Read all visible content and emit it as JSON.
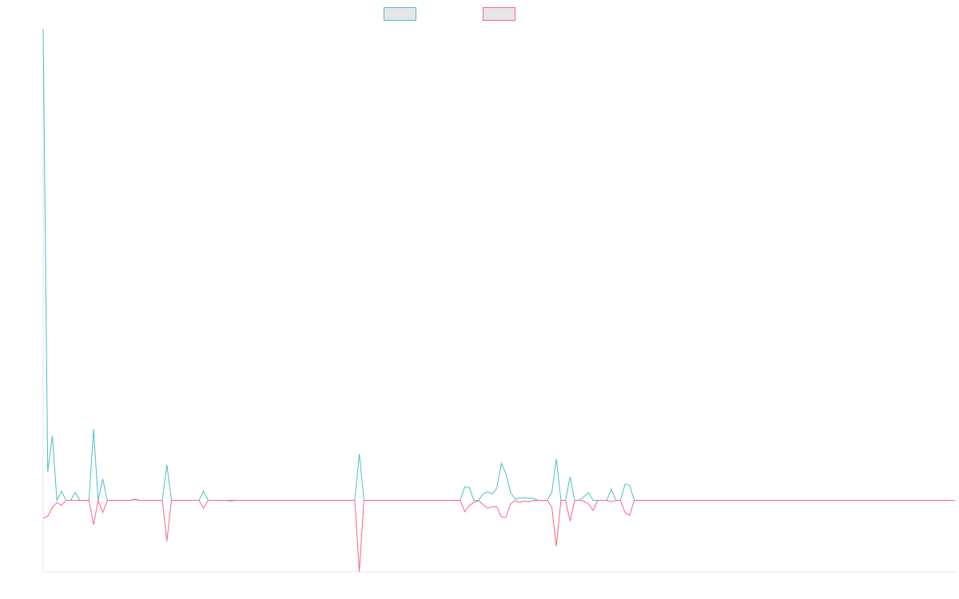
{
  "colors": {
    "series_a": "#4bc0c0",
    "series_b": "#ff6384",
    "legend_fill": "#e6e6e6",
    "axis": "#e5e5e5"
  },
  "chart_data": {
    "type": "line",
    "title": "",
    "xlabel": "",
    "ylabel": "",
    "grid": false,
    "legend_placement": "top",
    "x_count": 200,
    "ylim": [
      -10,
      66
    ],
    "series": [
      {
        "color": "#4bc0c0",
        "points": [
          [
            0,
            66
          ],
          [
            1,
            4
          ],
          [
            2,
            9
          ],
          [
            3,
            0
          ],
          [
            4,
            1.3
          ],
          [
            5,
            0
          ],
          [
            6,
            0
          ],
          [
            7,
            1.1
          ],
          [
            8,
            0
          ],
          [
            9,
            0
          ],
          [
            10,
            0
          ],
          [
            11,
            10
          ],
          [
            12,
            0
          ],
          [
            13,
            3
          ],
          [
            14,
            0
          ],
          [
            19,
            0
          ],
          [
            20,
            0.2
          ],
          [
            21,
            0
          ],
          [
            26,
            0
          ],
          [
            27,
            5
          ],
          [
            28,
            0
          ],
          [
            34,
            0
          ],
          [
            35,
            1.3
          ],
          [
            36,
            0
          ],
          [
            40,
            0
          ],
          [
            41,
            -0.1
          ],
          [
            42,
            0
          ],
          [
            68,
            0
          ],
          [
            69,
            6.5
          ],
          [
            70,
            0
          ],
          [
            91,
            0
          ],
          [
            92,
            1.9
          ],
          [
            93,
            1.8
          ],
          [
            94,
            0
          ],
          [
            95,
            0
          ],
          [
            96,
            0.9
          ],
          [
            97,
            1.2
          ],
          [
            98,
            0.9
          ],
          [
            99,
            1.7
          ],
          [
            100,
            5.2
          ],
          [
            101,
            3.7
          ],
          [
            102,
            1.1
          ],
          [
            103,
            0.2
          ],
          [
            104,
            0.3
          ],
          [
            105,
            0.4
          ],
          [
            106,
            0.3
          ],
          [
            107,
            0.3
          ],
          [
            108,
            0
          ],
          [
            110,
            0
          ],
          [
            111,
            1.1
          ],
          [
            112,
            5.8
          ],
          [
            113,
            0
          ],
          [
            114,
            0
          ],
          [
            115,
            3.3
          ],
          [
            116,
            0
          ],
          [
            117,
            0
          ],
          [
            118,
            0.5
          ],
          [
            119,
            1.1
          ],
          [
            120,
            0
          ],
          [
            122,
            0
          ],
          [
            123,
            0
          ],
          [
            124,
            1.6
          ],
          [
            125,
            0
          ],
          [
            126,
            0
          ],
          [
            127,
            2.3
          ],
          [
            128,
            2.1
          ],
          [
            129,
            0
          ],
          [
            199,
            0
          ]
        ]
      },
      {
        "color": "#ff6384",
        "points": [
          [
            0,
            -2.5
          ],
          [
            1,
            -2.2
          ],
          [
            2,
            -1
          ],
          [
            3,
            -0.3
          ],
          [
            4,
            -0.7
          ],
          [
            5,
            0
          ],
          [
            10,
            0
          ],
          [
            11,
            -3.4
          ],
          [
            12,
            0
          ],
          [
            13,
            -1.7
          ],
          [
            14,
            0
          ],
          [
            19,
            0
          ],
          [
            20,
            0.1
          ],
          [
            21,
            0
          ],
          [
            26,
            0
          ],
          [
            27,
            -5.7
          ],
          [
            28,
            0
          ],
          [
            34,
            0
          ],
          [
            35,
            -1.1
          ],
          [
            36,
            0
          ],
          [
            68,
            0
          ],
          [
            69,
            -10
          ],
          [
            70,
            0
          ],
          [
            91,
            0
          ],
          [
            92,
            -1.6
          ],
          [
            93,
            -0.7
          ],
          [
            94,
            -0.3
          ],
          [
            95,
            0
          ],
          [
            96,
            -0.6
          ],
          [
            97,
            -1.1
          ],
          [
            98,
            -0.9
          ],
          [
            99,
            -0.9
          ],
          [
            100,
            -2.3
          ],
          [
            101,
            -2.4
          ],
          [
            102,
            -0.5
          ],
          [
            103,
            0
          ],
          [
            104,
            -0.3
          ],
          [
            105,
            -0.1
          ],
          [
            106,
            -0.2
          ],
          [
            107,
            0
          ],
          [
            110,
            0
          ],
          [
            111,
            -0.9
          ],
          [
            112,
            -6.4
          ],
          [
            113,
            0
          ],
          [
            114,
            0
          ],
          [
            115,
            -2.9
          ],
          [
            116,
            0
          ],
          [
            117,
            0
          ],
          [
            118,
            -0.1
          ],
          [
            119,
            -0.5
          ],
          [
            120,
            -1.4
          ],
          [
            121,
            0
          ],
          [
            122,
            0
          ],
          [
            123,
            0
          ],
          [
            124,
            -0.2
          ],
          [
            125,
            0
          ],
          [
            126,
            0
          ],
          [
            127,
            -1.7
          ],
          [
            128,
            -2.1
          ],
          [
            129,
            0
          ],
          [
            199,
            0
          ]
        ]
      }
    ]
  }
}
